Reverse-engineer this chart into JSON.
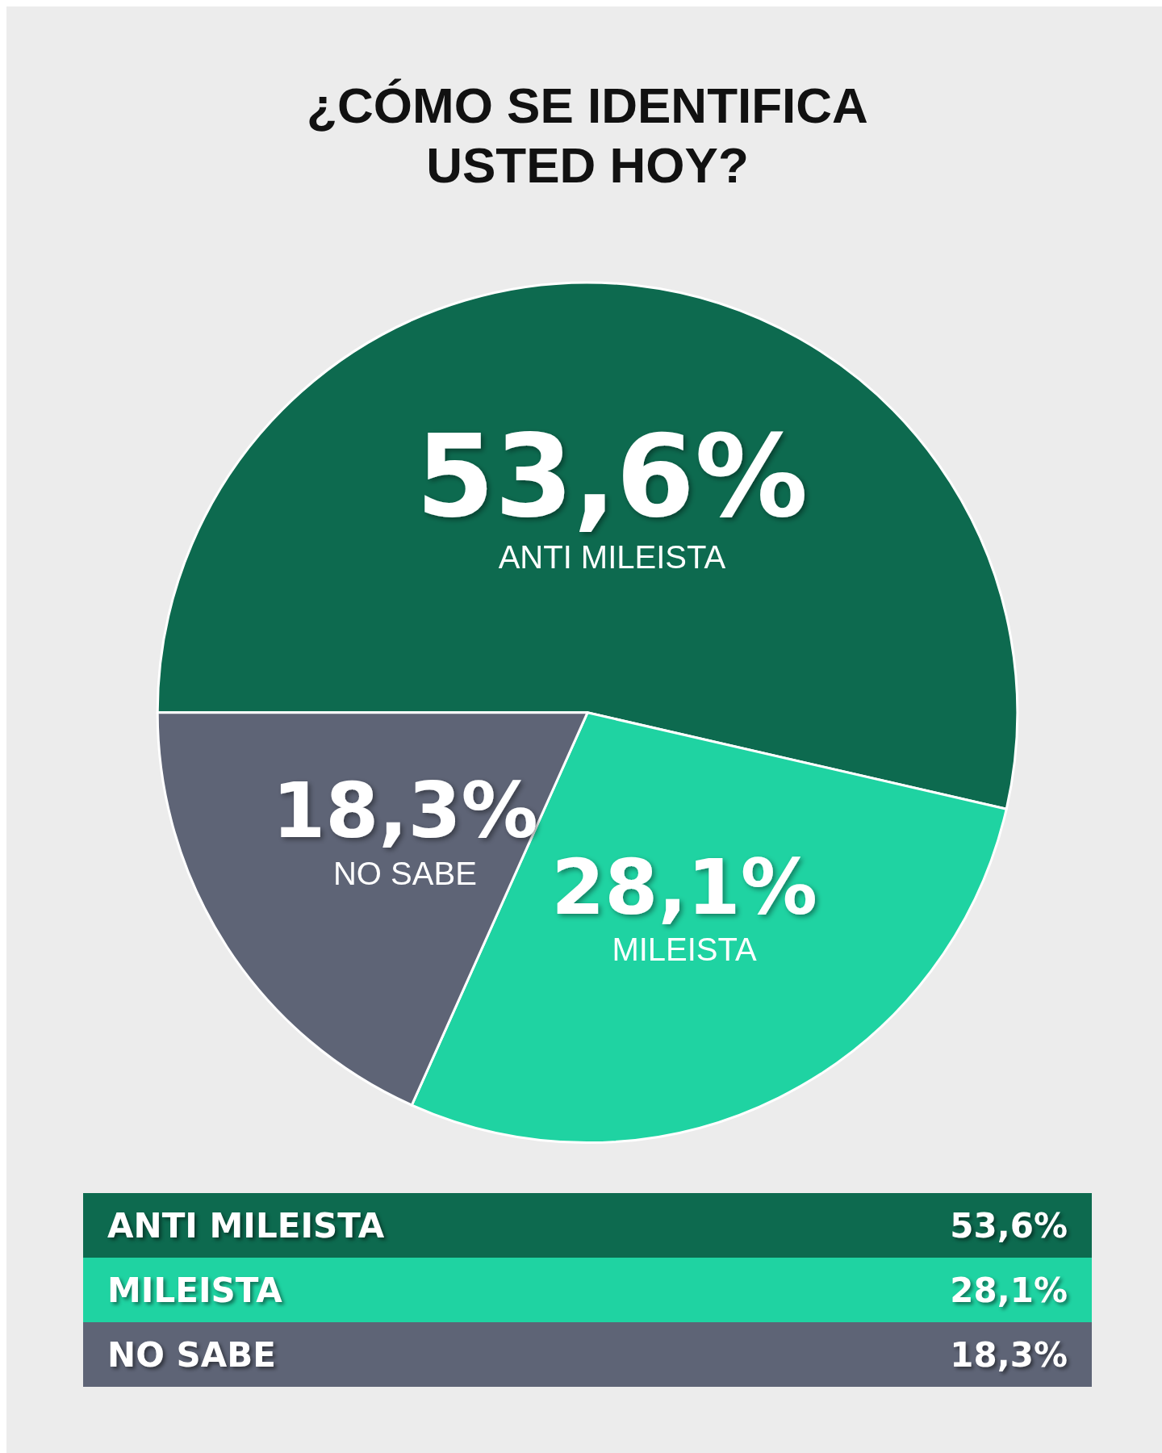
{
  "chart_data": {
    "type": "pie",
    "title": "¿CÓMO SE IDENTIFICA\nUSTED HOY?",
    "categories": [
      "ANTI MILEISTA",
      "MILEISTA",
      "NO SABE"
    ],
    "values": [
      53.6,
      28.1,
      18.3
    ],
    "colors": [
      "#0d6a4f",
      "#1fd3a2",
      "#5e6476"
    ],
    "value_labels": [
      "53,6%",
      "28,1%",
      "18,3%"
    ]
  }
}
